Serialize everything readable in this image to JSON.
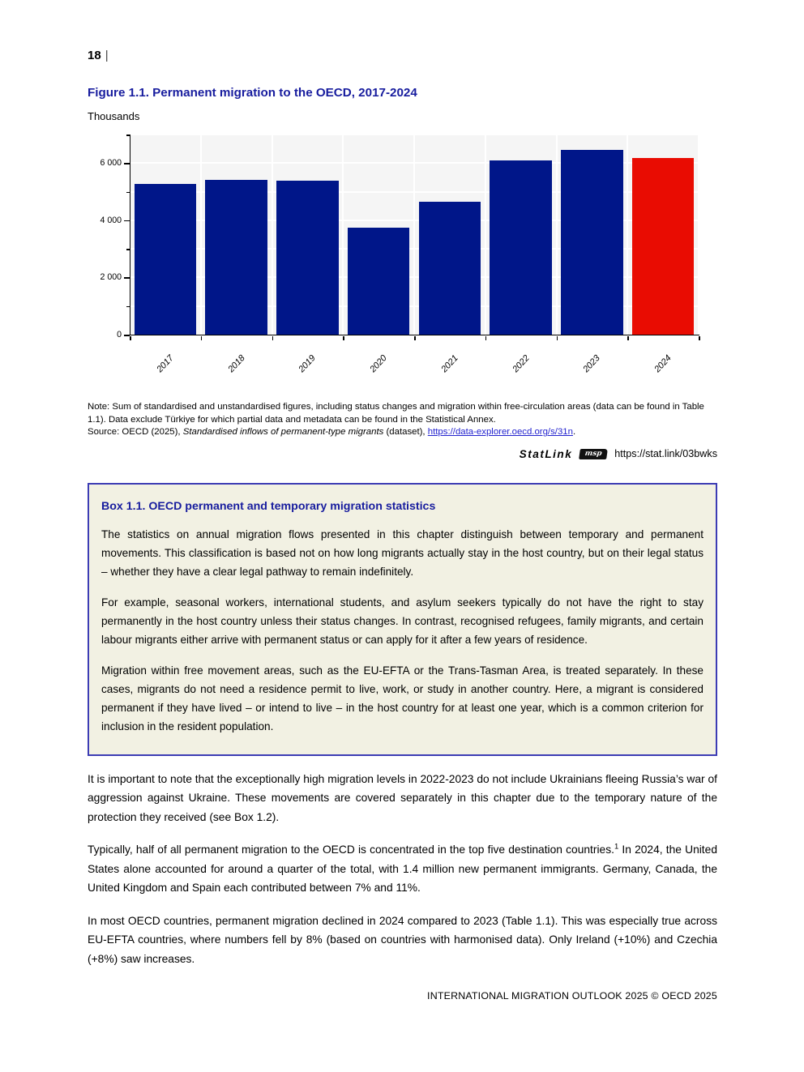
{
  "page": {
    "number": "18",
    "separator": "|",
    "footer": "INTERNATIONAL MIGRATION OUTLOOK 2025 © OECD 2025"
  },
  "figure": {
    "title": "Figure 1.1. Permanent migration to the OECD, 2017-2024",
    "unit_label": "Thousands",
    "note": "Note: Sum of standardised and unstandardised figures, including status changes and migration within free-circulation areas (data can be found in Table 1.1). Data exclude Türkiye for which partial data and metadata can be found in the Statistical Annex.",
    "source_prefix": "Source: OECD (2025), ",
    "source_italic": "Standardised inflows of permanent-type migrants",
    "source_mid": " (dataset), ",
    "source_link": "https://data-explorer.oecd.org/s/31n",
    "source_suffix": ".",
    "statlink_label": "StatLink",
    "statlink_icon_text": "msp",
    "statlink_url": "https://stat.link/03bwks"
  },
  "chart_data": {
    "type": "bar",
    "title": "Permanent migration to the OECD, 2017-2024",
    "unit": "Thousands",
    "categories": [
      "2017",
      "2018",
      "2019",
      "2020",
      "2021",
      "2022",
      "2023",
      "2024"
    ],
    "values": [
      5260,
      5400,
      5380,
      3750,
      4660,
      6090,
      6450,
      6170
    ],
    "ylim": [
      0,
      7000
    ],
    "ytick_interval": 2000,
    "ytick_labels": [
      "0",
      "2 000",
      "4 000",
      "6 000"
    ],
    "minor_tick_interval": 1000,
    "gridline_interval": 1000,
    "grid_color": "#ffffff",
    "plot_bg": "#f5f5f5",
    "bar_color": "#001689",
    "highlight_color": "#e90c02",
    "highlight_category": "2024",
    "legend": "none",
    "xlabel": "",
    "ylabel": "Thousands"
  },
  "box": {
    "title": "Box 1.1. OECD permanent and temporary migration statistics",
    "paragraphs": [
      "The statistics on annual migration flows presented in this chapter distinguish between temporary and permanent movements. This classification is based not on how long migrants actually stay in the host country, but on their legal status – whether they have a clear legal pathway to remain indefinitely.",
      "For example, seasonal workers, international students, and asylum seekers typically do not have the right to stay permanently in the host country unless their status changes. In contrast, recognised refugees, family migrants, and certain labour migrants either arrive with permanent status or can apply for it after a few years of residence.",
      "Migration within free movement areas, such as the EU-EFTA or the Trans-Tasman Area, is treated separately. In these cases, migrants do not need a residence permit to live, work, or study in another country. Here, a migrant is considered permanent if they have lived – or intend to live – in the host country for at least one year, which is a common criterion for inclusion in the resident population."
    ]
  },
  "body": {
    "paragraphs": [
      {
        "text": "It is important to note that the exceptionally high migration levels in 2022-2023 do not include Ukrainians fleeing Russia’s war of aggression against Ukraine. These movements are covered separately in this chapter due to the temporary nature of the protection they received (see Box 1.2)."
      },
      {
        "pre": "Typically, half of all permanent migration to the OECD is concentrated in the top five destination countries.",
        "sup": "1",
        "post": " In 2024, the United States alone accounted for around a quarter of the total, with 1.4 million new permanent immigrants. Germany, Canada, the United Kingdom and Spain each contributed between 7% and 11%."
      },
      {
        "text": "In most OECD countries, permanent migration declined in 2024 compared to 2023 (Table 1.1). This was especially true across EU-EFTA countries, where numbers fell by 8% (based on countries with harmonised data). Only Ireland (+10%) and Czechia (+8%) saw increases."
      }
    ]
  },
  "colors": {
    "heading_blue": "#171c9e",
    "box_border": "#3c3cb4",
    "box_bg": "#f2f1e3",
    "link_blue": "#2323cf",
    "bar_navy": "#001689",
    "bar_red": "#e90c02"
  }
}
